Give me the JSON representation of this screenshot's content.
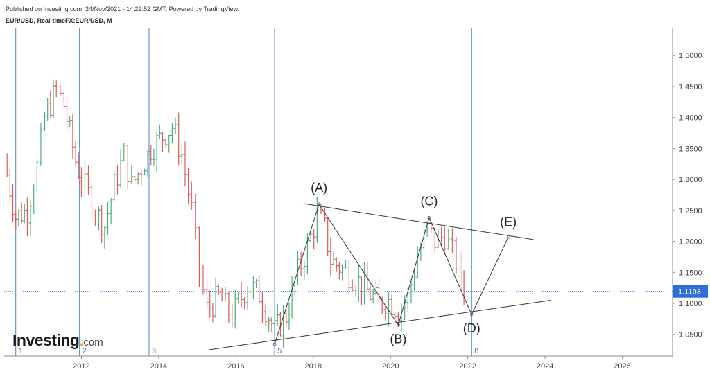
{
  "header": {
    "published": "Published on Investing.com, 24/Nov/2021 - 14:29:52 GMT, Powered by TradingView.",
    "symbol": "EUR/USD, Real-timeFX:EUR/USD, M"
  },
  "logo": {
    "main": "Investing",
    "suffix": "com"
  },
  "chart_data": {
    "type": "ohlc",
    "interval": "M",
    "x_axis": {
      "labels": [
        "2012",
        "2014",
        "2016",
        "2018",
        "2020",
        "2022",
        "2024",
        "2026"
      ],
      "range": [
        2010.0,
        2027.3
      ]
    },
    "y_axis": {
      "labels": [
        "1.0500",
        "1.1000",
        "1.1500",
        "1.2000",
        "1.2500",
        "1.3000",
        "1.3500",
        "1.4000",
        "1.4500",
        "1.5000"
      ],
      "range": [
        1.015,
        1.545
      ]
    },
    "last_price": {
      "value": 1.1193,
      "label": "1.1193"
    },
    "cycle_lines": [
      {
        "x": 2010.3,
        "label": "1"
      },
      {
        "x": 2011.95,
        "label": "2"
      },
      {
        "x": 2013.75,
        "label": "3"
      },
      {
        "x": 2017.0,
        "label": "5"
      },
      {
        "x": 2022.1,
        "label": "8"
      }
    ],
    "elliott_points": [
      {
        "label": "(A)",
        "x": 2018.15,
        "y": 1.26
      },
      {
        "label": "(B)",
        "x": 2020.2,
        "y": 1.065
      },
      {
        "label": "(C)",
        "x": 2021.0,
        "y": 1.238
      },
      {
        "label": "(D)",
        "x": 2022.1,
        "y": 1.082
      },
      {
        "label": "(E)",
        "x": 2023.05,
        "y": 1.207
      }
    ],
    "wave_start": {
      "x": 2017.0,
      "y": 1.034
    },
    "trendlines": [
      {
        "x1": 2015.3,
        "y1": 1.025,
        "x2": 2024.15,
        "y2": 1.105
      },
      {
        "x1": 2017.75,
        "y1": 1.261,
        "x2": 2023.7,
        "y2": 1.203
      }
    ],
    "anchors": [
      {
        "x": 2010.0,
        "y": 1.33
      },
      {
        "x": 2010.3,
        "y": 1.24
      },
      {
        "x": 2010.6,
        "y": 1.25
      },
      {
        "x": 2010.85,
        "y": 1.32
      },
      {
        "x": 2011.05,
        "y": 1.4
      },
      {
        "x": 2011.35,
        "y": 1.445
      },
      {
        "x": 2011.55,
        "y": 1.42
      },
      {
        "x": 2011.85,
        "y": 1.33
      },
      {
        "x": 2012.0,
        "y": 1.3
      },
      {
        "x": 2012.45,
        "y": 1.24
      },
      {
        "x": 2012.6,
        "y": 1.225
      },
      {
        "x": 2012.85,
        "y": 1.29
      },
      {
        "x": 2013.1,
        "y": 1.34
      },
      {
        "x": 2013.3,
        "y": 1.29
      },
      {
        "x": 2013.55,
        "y": 1.32
      },
      {
        "x": 2013.8,
        "y": 1.35
      },
      {
        "x": 2014.1,
        "y": 1.37
      },
      {
        "x": 2014.35,
        "y": 1.385
      },
      {
        "x": 2014.6,
        "y": 1.34
      },
      {
        "x": 2014.85,
        "y": 1.25
      },
      {
        "x": 2015.05,
        "y": 1.15
      },
      {
        "x": 2015.25,
        "y": 1.09
      },
      {
        "x": 2015.55,
        "y": 1.11
      },
      {
        "x": 2015.9,
        "y": 1.08
      },
      {
        "x": 2016.3,
        "y": 1.13
      },
      {
        "x": 2016.6,
        "y": 1.115
      },
      {
        "x": 2016.85,
        "y": 1.08
      },
      {
        "x": 2017.0,
        "y": 1.055
      },
      {
        "x": 2017.3,
        "y": 1.08
      },
      {
        "x": 2017.6,
        "y": 1.15
      },
      {
        "x": 2017.85,
        "y": 1.19
      },
      {
        "x": 2018.1,
        "y": 1.24
      },
      {
        "x": 2018.3,
        "y": 1.22
      },
      {
        "x": 2018.45,
        "y": 1.17
      },
      {
        "x": 2018.75,
        "y": 1.155
      },
      {
        "x": 2019.1,
        "y": 1.14
      },
      {
        "x": 2019.4,
        "y": 1.12
      },
      {
        "x": 2019.7,
        "y": 1.1
      },
      {
        "x": 2019.95,
        "y": 1.105
      },
      {
        "x": 2020.2,
        "y": 1.09
      },
      {
        "x": 2020.45,
        "y": 1.11
      },
      {
        "x": 2020.7,
        "y": 1.175
      },
      {
        "x": 2020.95,
        "y": 1.22
      },
      {
        "x": 2021.15,
        "y": 1.2
      },
      {
        "x": 2021.4,
        "y": 1.21
      },
      {
        "x": 2021.6,
        "y": 1.18
      },
      {
        "x": 2021.8,
        "y": 1.155
      },
      {
        "x": 2021.9,
        "y": 1.125
      }
    ]
  }
}
